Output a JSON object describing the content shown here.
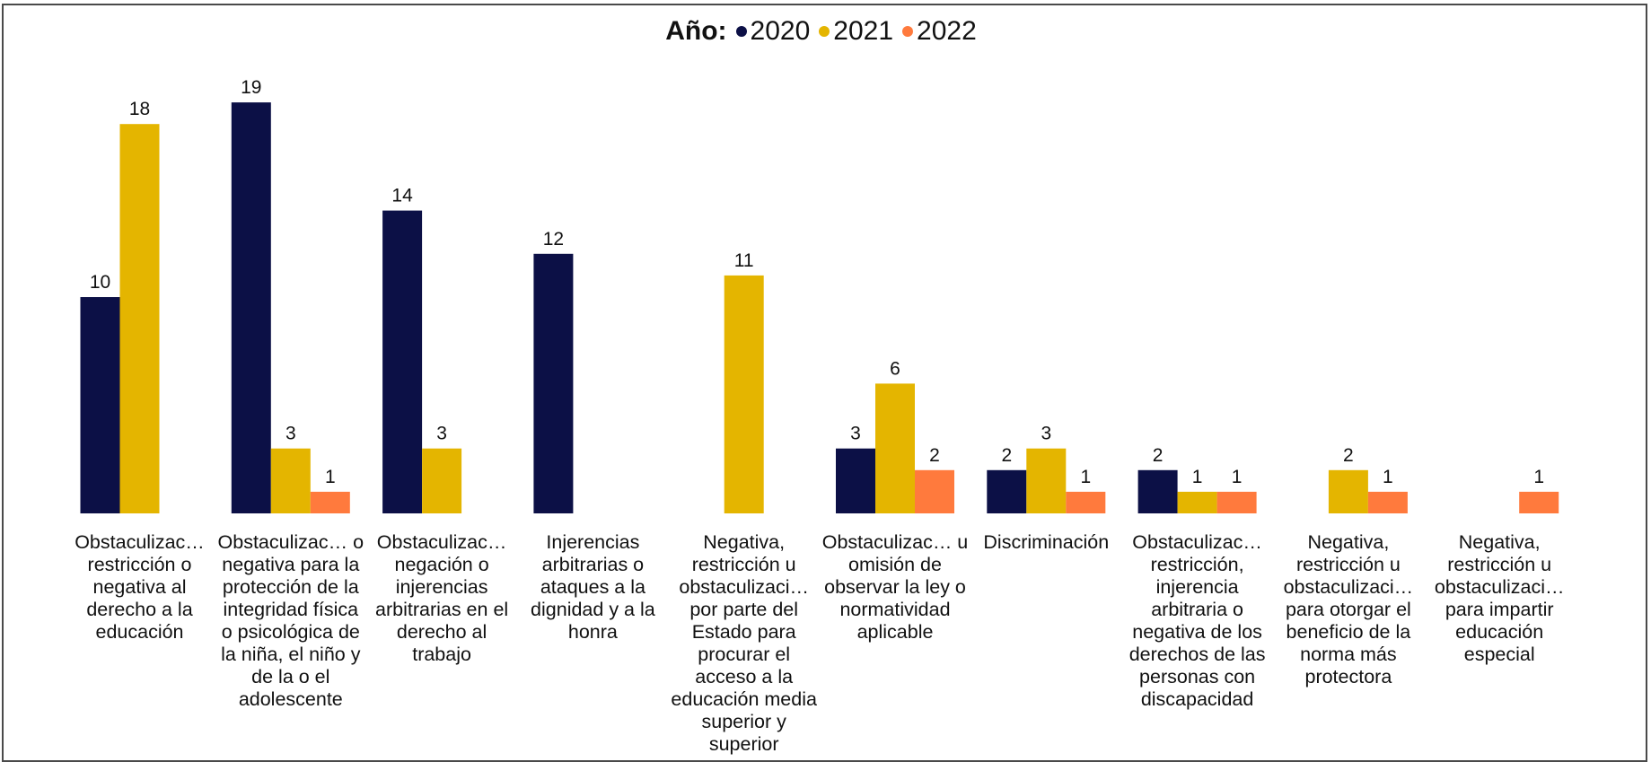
{
  "legend": {
    "title": "Año:",
    "items": [
      {
        "label": "2020",
        "color": "#0c1046"
      },
      {
        "label": "2021",
        "color": "#e4b500"
      },
      {
        "label": "2022",
        "color": "#ff7a3d"
      }
    ]
  },
  "chart_data": {
    "type": "bar",
    "title": "",
    "xlabel": "",
    "ylabel": "",
    "legend_title": "Año:",
    "legend_position": "top-center",
    "grid": false,
    "categories": [
      "Obstaculizac… restricción o negativa al derecho a la educación",
      "Obstaculizac… o negativa para la protección de la integridad física o psicológica de la niña, el niño y de la o el adolescente",
      "Obstaculizac… negación o injerencias arbitrarias en el derecho al trabajo",
      "Injerencias arbitrarias o ataques a la dignidad y a la honra",
      "Negativa, restricción u obstaculizaci… por parte del Estado para procurar el acceso a la educación media superior y superior",
      "Obstaculizac… u omisión de observar la ley o normatividad aplicable",
      "Discriminación",
      "Obstaculizac… restricción, injerencia arbitraria o negativa de los derechos de las personas con discapacidad",
      "Negativa, restricción u obstaculizaci… para otorgar el beneficio de la norma más protectora",
      "Negativa, restricción u obstaculizaci… para impartir educación especial"
    ],
    "series": [
      {
        "name": "2020",
        "color": "#0c1046",
        "values": [
          10,
          19,
          14,
          12,
          null,
          3,
          2,
          2,
          null,
          null
        ]
      },
      {
        "name": "2021",
        "color": "#e4b500",
        "values": [
          18,
          3,
          3,
          null,
          11,
          6,
          3,
          1,
          2,
          null
        ]
      },
      {
        "name": "2022",
        "color": "#ff7a3d",
        "values": [
          null,
          1,
          null,
          null,
          null,
          2,
          1,
          1,
          1,
          1
        ]
      }
    ],
    "ylim": [
      0,
      19
    ]
  }
}
